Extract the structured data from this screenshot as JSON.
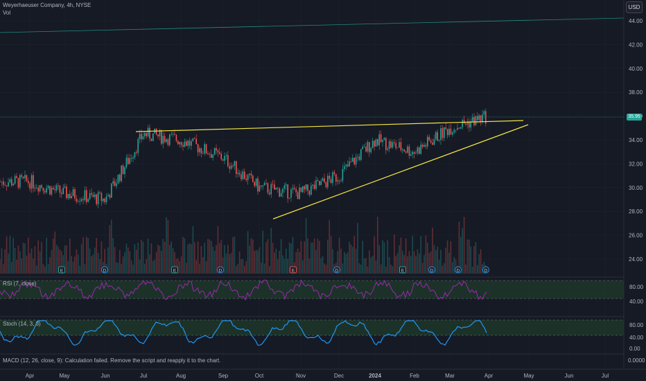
{
  "header": {
    "title": "Weyerhaeuser Company, 4h, NYSE",
    "vol_label": "Vol",
    "currency": "USD"
  },
  "price_axis": {
    "ticks": [
      "44.00",
      "42.00",
      "40.00",
      "38.00",
      "36.00",
      "34.00",
      "32.00",
      "30.00",
      "28.00",
      "26.00",
      "24.00"
    ],
    "last_price_tag": "35.95"
  },
  "time_axis": {
    "labels": [
      "Apr",
      "May",
      "Jun",
      "Jul",
      "Aug",
      "Sep",
      "Oct",
      "Nov",
      "Dec",
      "2024",
      "Feb",
      "Mar",
      "Apr",
      "May",
      "Jun",
      "Jul"
    ]
  },
  "indicators": {
    "rsi": {
      "label": "RSI (7, close)",
      "ticks": [
        "80.00",
        "40.00"
      ]
    },
    "stoch": {
      "label": "Stoch (14, 3, 3)",
      "ticks": [
        "80.00",
        "40.00",
        "0.00"
      ]
    },
    "macd": {
      "label": "MACD (12, 26, close, 9): Calculation failed. Remove the script and reapply it to the chart.",
      "tick": "0.0000"
    }
  },
  "event_markers": [
    "E",
    "D",
    "E",
    "D",
    "E",
    "D",
    "E",
    "D",
    "D",
    "D"
  ],
  "colors": {
    "background": "#161a25",
    "up": "#26a69a",
    "down": "#ef5350",
    "trendline": "#f5e642",
    "rsi_line": "#9c27b0",
    "stoch_line": "#2196f3",
    "band_fill": "#1f3d2b"
  },
  "chart_data": {
    "type": "candlestick",
    "symbol": "Weyerhaeuser Company",
    "interval": "4h",
    "exchange": "NYSE",
    "y_range": [
      23,
      45
    ],
    "approx_close_path": [
      {
        "x": "Apr",
        "y": 30.5
      },
      {
        "x": "May",
        "y": 29.5
      },
      {
        "x": "Jun",
        "y": 29.0
      },
      {
        "x": "Jul",
        "y": 34.5
      },
      {
        "x": "Aug",
        "y": 34.0
      },
      {
        "x": "Sep",
        "y": 32.5
      },
      {
        "x": "Oct",
        "y": 30.0
      },
      {
        "x": "Nov",
        "y": 29.5
      },
      {
        "x": "Dec",
        "y": 31.0
      },
      {
        "x": "2024",
        "y": 34.0
      },
      {
        "x": "Feb",
        "y": 33.0
      },
      {
        "x": "Mar",
        "y": 35.0
      },
      {
        "x": "Apr",
        "y": 35.95
      }
    ]
  }
}
